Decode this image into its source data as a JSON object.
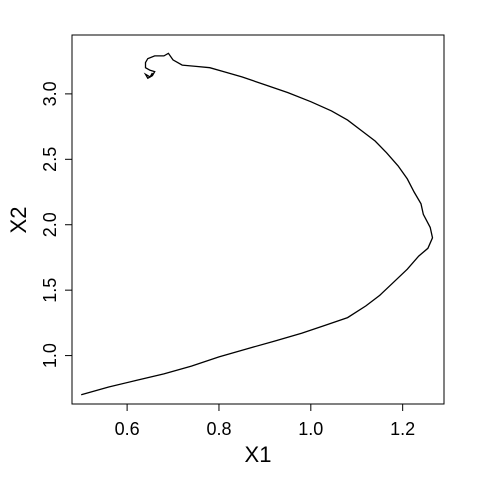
{
  "chart_data": {
    "type": "line",
    "title": "",
    "xlabel": "X1",
    "ylabel": "X2",
    "xlim": [
      0.48,
      1.29
    ],
    "ylim": [
      0.63,
      3.45
    ],
    "xticks": [
      0.6,
      0.8,
      1.0,
      1.2
    ],
    "yticks": [
      1.0,
      1.5,
      2.0,
      2.5,
      3.0
    ],
    "xtick_labels": [
      "0.6",
      "0.8",
      "1.0",
      "1.2"
    ],
    "ytick_labels": [
      "1.0",
      "1.5",
      "2.0",
      "2.5",
      "3.0"
    ],
    "grid": false,
    "line_color": "#000000",
    "series": [
      {
        "x": [
          0.5,
          0.56,
          0.62,
          0.68,
          0.74,
          0.8,
          0.86,
          0.92,
          0.98,
          1.03,
          1.08,
          1.12,
          1.15,
          1.18,
          1.21,
          1.235,
          1.255,
          1.265,
          1.26,
          1.245,
          1.24,
          1.225,
          1.21,
          1.19,
          1.165,
          1.14,
          1.11,
          1.08,
          1.045,
          1.0,
          0.95,
          0.9,
          0.85,
          0.81,
          0.78,
          0.75,
          0.72,
          0.7,
          0.69,
          0.68,
          0.66,
          0.645,
          0.64,
          0.64,
          0.65,
          0.66,
          0.655,
          0.645,
          0.64,
          0.65,
          0.655
        ],
        "y": [
          0.7,
          0.76,
          0.81,
          0.86,
          0.92,
          0.99,
          1.05,
          1.11,
          1.17,
          1.23,
          1.29,
          1.38,
          1.46,
          1.56,
          1.66,
          1.76,
          1.82,
          1.9,
          1.98,
          2.08,
          2.16,
          2.25,
          2.35,
          2.45,
          2.55,
          2.64,
          2.72,
          2.8,
          2.87,
          2.94,
          3.01,
          3.07,
          3.13,
          3.17,
          3.2,
          3.21,
          3.22,
          3.26,
          3.31,
          3.29,
          3.29,
          3.27,
          3.24,
          3.2,
          3.18,
          3.17,
          3.14,
          3.12,
          3.15,
          3.13,
          3.16
        ]
      }
    ]
  }
}
